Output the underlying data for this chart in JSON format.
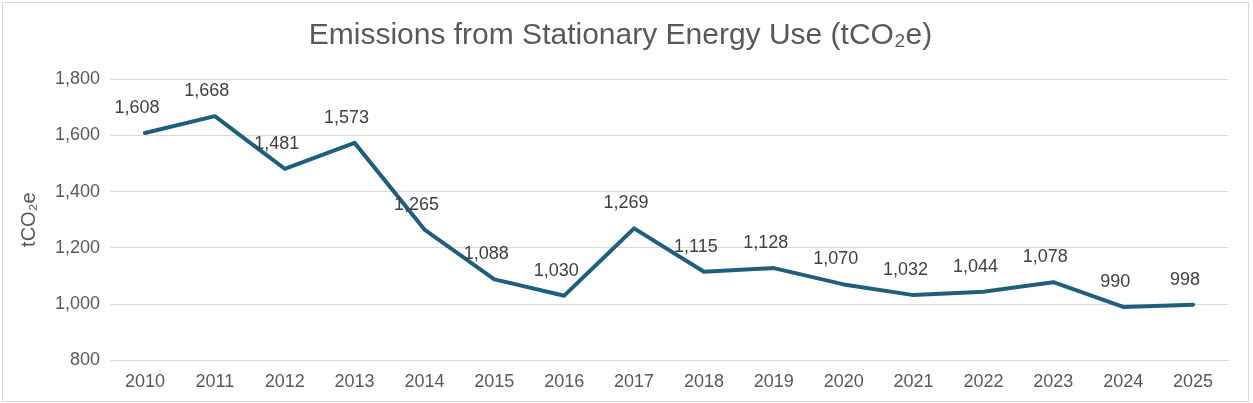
{
  "chart_data": {
    "type": "line",
    "title": "Emissions from Stationary Energy Use (tCO₂e)",
    "ylabel": "tCO₂e",
    "categories": [
      "2010",
      "2011",
      "2012",
      "2013",
      "2014",
      "2015",
      "2016",
      "2017",
      "2018",
      "2019",
      "2020",
      "2021",
      "2022",
      "2023",
      "2024",
      "2025"
    ],
    "series": [
      {
        "color": "#1f5f7e",
        "values": [
          1608,
          1668,
          1481,
          1573,
          1265,
          1088,
          1030,
          1269,
          1115,
          1128,
          1070,
          1032,
          1044,
          1078,
          990,
          998
        ],
        "value_labels": [
          "1,608",
          "1,668",
          "1,481",
          "1,573",
          "1,265",
          "1,088",
          "1,030",
          "1,269",
          "1,115",
          "1,128",
          "1,070",
          "1,032",
          "1,044",
          "1,078",
          "990",
          "998"
        ]
      }
    ],
    "ylim": [
      800,
      1800
    ],
    "yticks": [
      {
        "value": 800,
        "label": "800"
      },
      {
        "value": 1000,
        "label": "1,000"
      },
      {
        "value": 1200,
        "label": "1,200"
      },
      {
        "value": 1400,
        "label": "1,400"
      },
      {
        "value": 1600,
        "label": "1,600"
      },
      {
        "value": 1800,
        "label": "1,800"
      }
    ],
    "grid": "y",
    "legend": false,
    "marker": "none",
    "line_style": "solid"
  }
}
